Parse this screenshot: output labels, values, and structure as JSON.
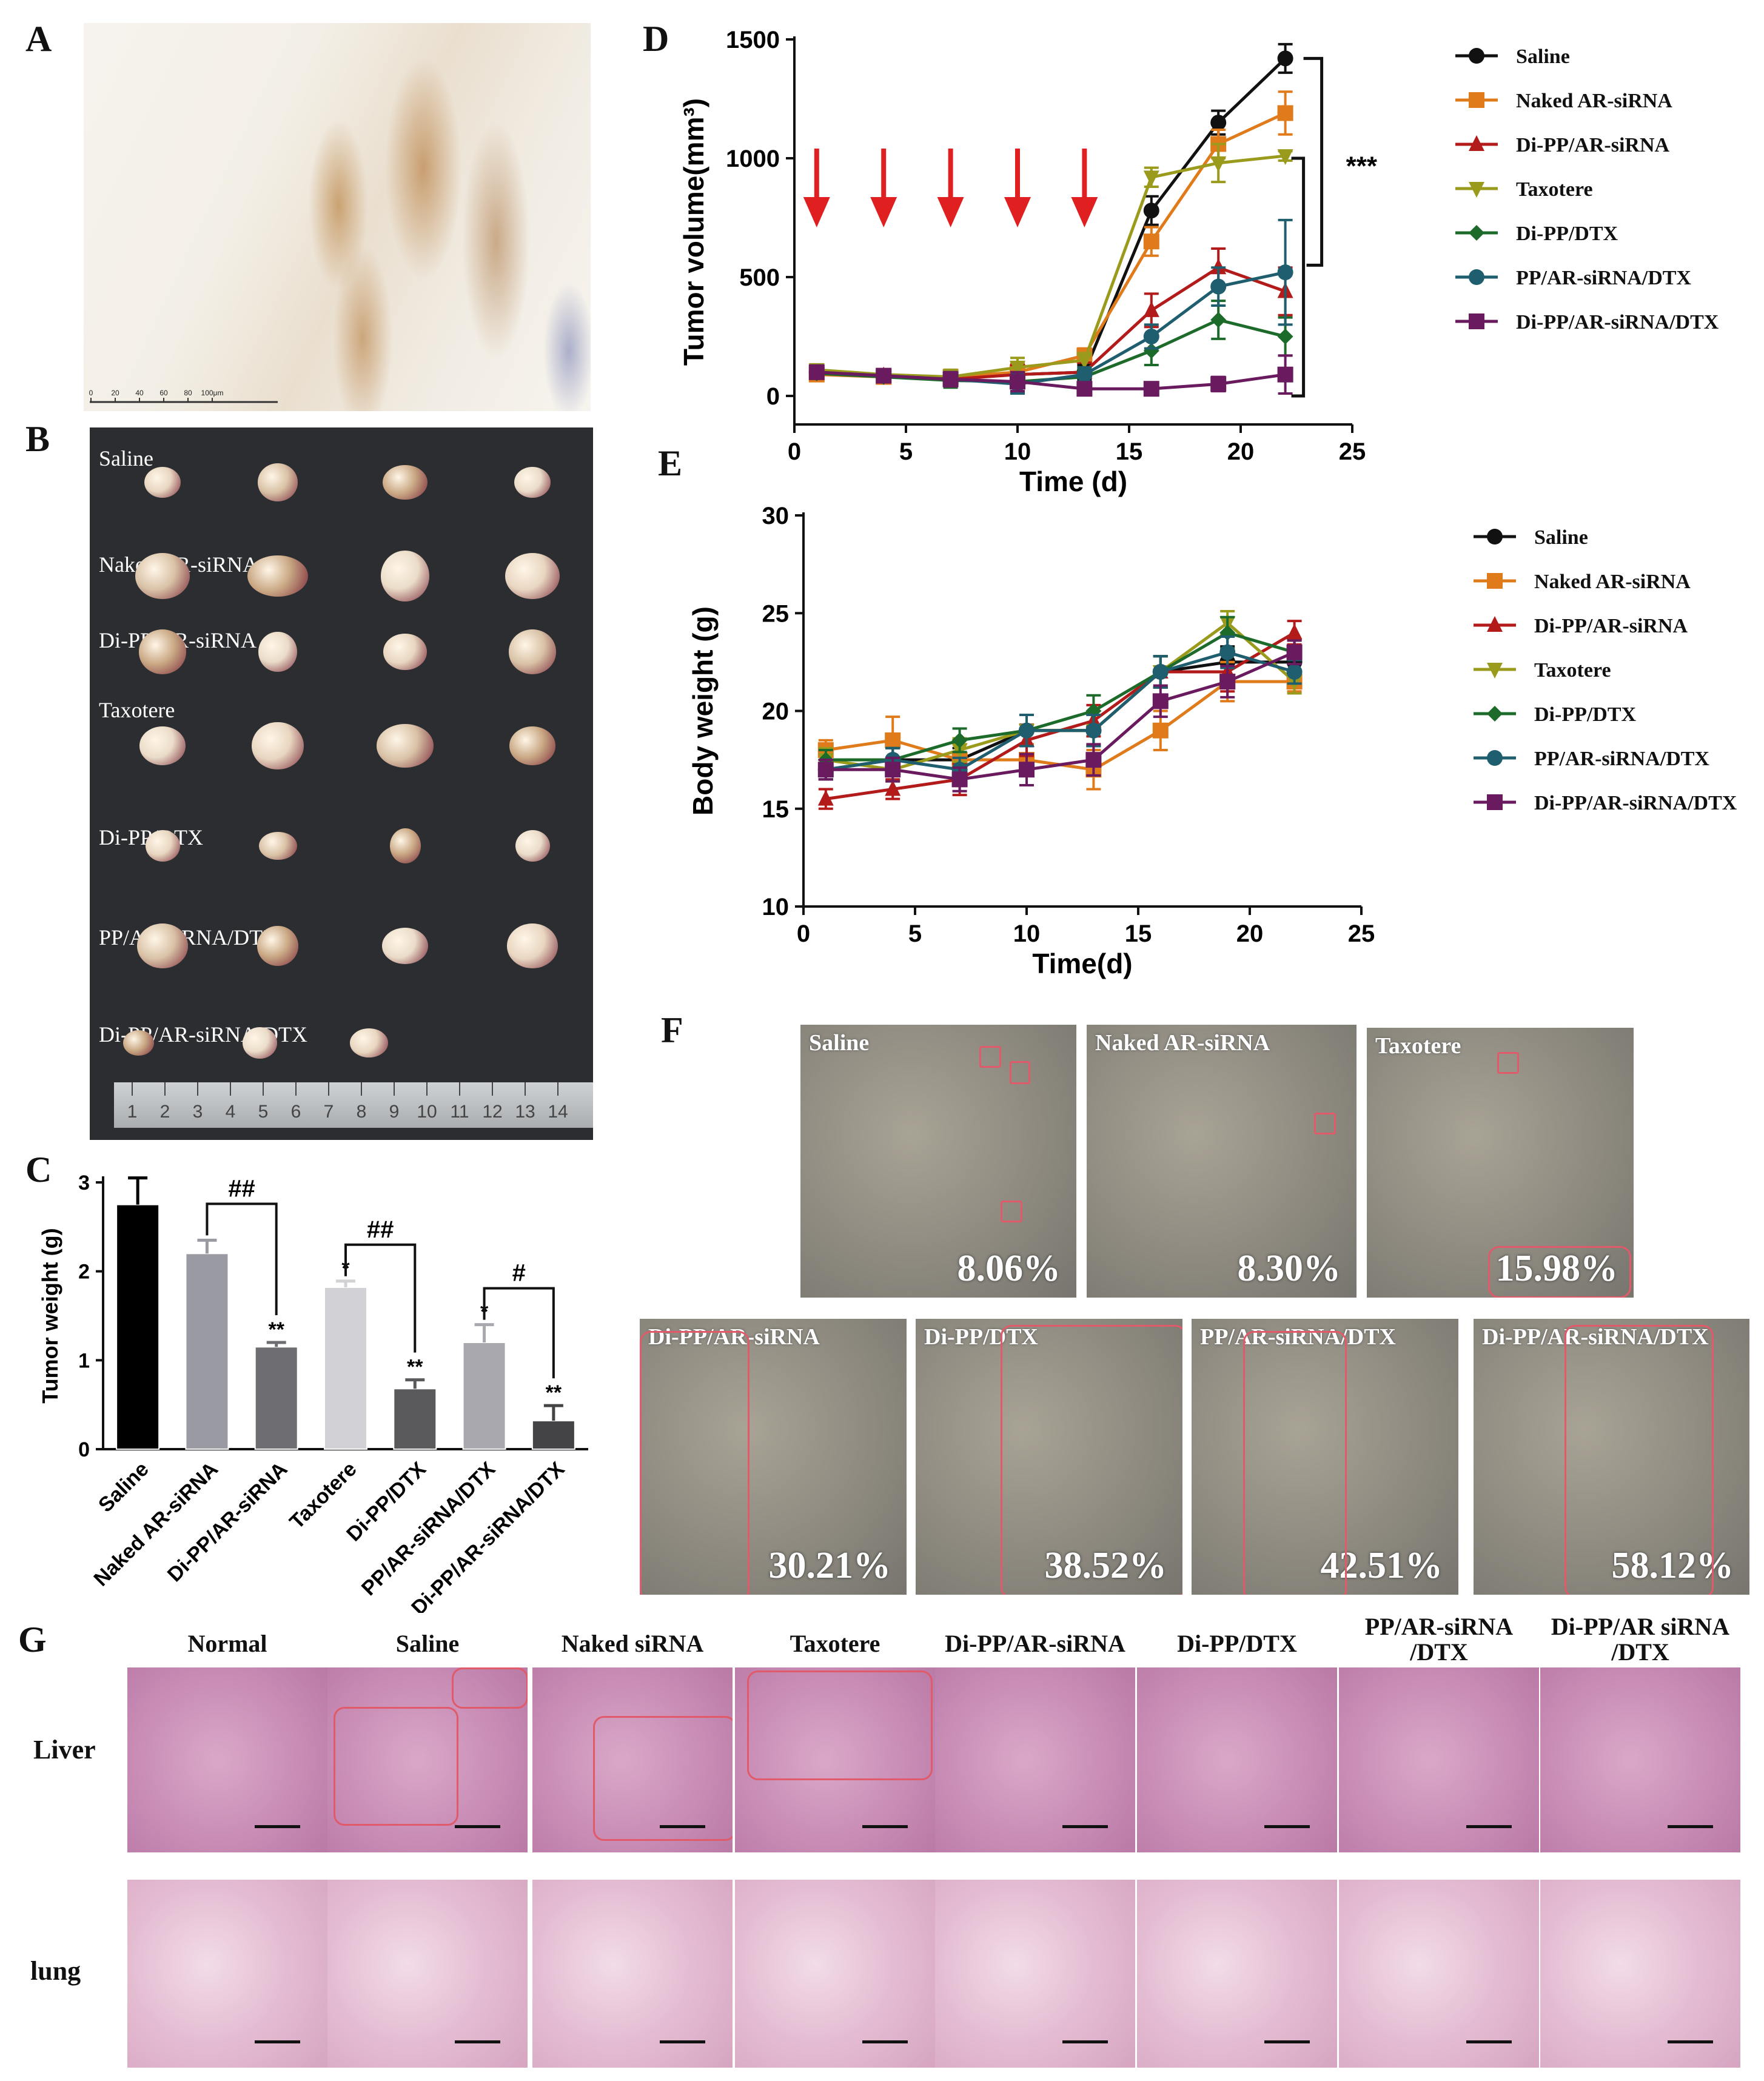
{
  "panels": {
    "A": "A",
    "B": "B",
    "C": "C",
    "D": "D",
    "E": "E",
    "F": "F",
    "G": "G"
  },
  "panel_b": {
    "groups": [
      "Saline",
      "Naked AR-siRNA",
      "Di-PP/AR-siRNA",
      "Taxotere",
      "Di-PP/DTX",
      "PP/AR-siRNA/DTX",
      "Di-PP/AR-siRNA/DTX"
    ],
    "ruler_ticks": [
      "1",
      "2",
      "3",
      "4",
      "5",
      "6",
      "7",
      "8",
      "9",
      "10",
      "11",
      "12",
      "13",
      "14"
    ]
  },
  "panel_a": {
    "scale_ticks": [
      "0",
      "20",
      "40",
      "60",
      "80",
      "100μm"
    ]
  },
  "chart_data": [
    {
      "id": "C",
      "type": "bar",
      "ylabel": "Tumor weight (g)",
      "ylim": [
        0,
        3
      ],
      "yticks": [
        0,
        1,
        2,
        3
      ],
      "categories": [
        "Saline",
        "Naked AR-siRNA",
        "Di-PP/AR-siRNA",
        "Taxotere",
        "Di-PP/DTX",
        "PP/AR-siRNA/DTX",
        "Di-PP/AR-siRNA/DTX"
      ],
      "values": [
        2.75,
        2.2,
        1.15,
        1.82,
        0.68,
        1.2,
        0.32
      ],
      "errors": [
        0.3,
        0.15,
        0.05,
        0.07,
        0.1,
        0.2,
        0.17
      ],
      "colors": [
        "#000000",
        "#9a9aa3",
        "#6e6e72",
        "#d2d2d6",
        "#5a5a5c",
        "#a8a8ae",
        "#444446"
      ],
      "stars": [
        "",
        "",
        "**",
        "*",
        "**",
        "*",
        "**"
      ],
      "comparisons": [
        {
          "from": 1,
          "to": 2,
          "label": "##"
        },
        {
          "from": 3,
          "to": 4,
          "label": "##"
        },
        {
          "from": 5,
          "to": 6,
          "label": "#"
        }
      ]
    },
    {
      "id": "D",
      "type": "line",
      "xlabel": "Time (d)",
      "ylabel": "Tumor volume(mm³)",
      "xlim": [
        0,
        25
      ],
      "ylim": [
        -120,
        1500
      ],
      "xticks": [
        0,
        5,
        10,
        15,
        20,
        25
      ],
      "yticks": [
        0,
        500,
        1000,
        1500
      ],
      "x": [
        1,
        4,
        7,
        10,
        13,
        16,
        19,
        22
      ],
      "arrows_at": [
        1,
        4,
        7,
        10,
        13
      ],
      "significance": "***",
      "series": [
        {
          "name": "Saline",
          "color": "#111111",
          "marker": "circle",
          "values": [
            100,
            85,
            75,
            90,
            100,
            780,
            1150,
            1420
          ],
          "errors": [
            20,
            20,
            30,
            40,
            30,
            60,
            50,
            60
          ]
        },
        {
          "name": "Naked AR-siRNA",
          "color": "#e07b1c",
          "marker": "square",
          "values": [
            90,
            80,
            80,
            100,
            170,
            650,
            1060,
            1190
          ],
          "errors": [
            20,
            20,
            30,
            40,
            30,
            60,
            60,
            90
          ]
        },
        {
          "name": "Di-PP/AR-siRNA",
          "color": "#b31b1b",
          "marker": "triangle",
          "values": [
            95,
            85,
            70,
            90,
            100,
            360,
            540,
            440
          ],
          "errors": [
            20,
            20,
            30,
            40,
            40,
            70,
            80,
            100
          ]
        },
        {
          "name": "Taxotere",
          "color": "#9a9a1c",
          "marker": "triangle-down",
          "values": [
            110,
            90,
            80,
            120,
            150,
            920,
            980,
            1010
          ],
          "errors": [
            20,
            20,
            30,
            40,
            30,
            40,
            80,
            20
          ]
        },
        {
          "name": "Di-PP/DTX",
          "color": "#1d6b2a",
          "marker": "diamond",
          "values": [
            95,
            80,
            65,
            60,
            80,
            190,
            320,
            250
          ],
          "errors": [
            20,
            20,
            30,
            40,
            30,
            60,
            80,
            80
          ]
        },
        {
          "name": "PP/AR-siRNA/DTX",
          "color": "#1e5e6e",
          "marker": "circle",
          "values": [
            100,
            85,
            70,
            50,
            90,
            250,
            460,
            520
          ],
          "errors": [
            20,
            20,
            30,
            40,
            30,
            50,
            80,
            220
          ]
        },
        {
          "name": "Di-PP/AR-siRNA/DTX",
          "color": "#6a1a5e",
          "marker": "square",
          "values": [
            100,
            85,
            70,
            60,
            30,
            30,
            50,
            90
          ],
          "errors": [
            20,
            20,
            30,
            40,
            20,
            15,
            30,
            80
          ]
        }
      ]
    },
    {
      "id": "E",
      "type": "line",
      "xlabel": "Time(d)",
      "ylabel": "Body weight (g)",
      "xlim": [
        0,
        25
      ],
      "ylim": [
        10,
        30
      ],
      "xticks": [
        0,
        5,
        10,
        15,
        20,
        25
      ],
      "yticks": [
        10,
        15,
        20,
        25,
        30
      ],
      "x": [
        1,
        4,
        7,
        10,
        13,
        16,
        19,
        22
      ],
      "series": [
        {
          "name": "Saline",
          "color": "#111111",
          "marker": "circle",
          "values": [
            17.0,
            17.5,
            17.5,
            19.0,
            19.0,
            22.0,
            22.5,
            22.5
          ],
          "errors": [
            0.5,
            0.6,
            0.6,
            0.8,
            0.8,
            0.8,
            0.8,
            0.6
          ]
        },
        {
          "name": "Naked AR-siRNA",
          "color": "#e07b1c",
          "marker": "square",
          "values": [
            18.0,
            18.5,
            17.5,
            17.5,
            17.0,
            19.0,
            21.5,
            21.5
          ],
          "errors": [
            0.5,
            1.2,
            0.8,
            0.8,
            1.0,
            1.0,
            1.0,
            0.5
          ]
        },
        {
          "name": "Di-PP/AR-siRNA",
          "color": "#b31b1b",
          "marker": "triangle",
          "values": [
            15.5,
            16.0,
            16.5,
            18.5,
            19.5,
            22.0,
            22.0,
            24.0
          ],
          "errors": [
            0.5,
            0.5,
            0.8,
            0.8,
            0.8,
            0.8,
            1.0,
            0.6
          ]
        },
        {
          "name": "Taxotere",
          "color": "#9a9a1c",
          "marker": "triangle-down",
          "values": [
            17.5,
            17.0,
            18.0,
            19.0,
            19.0,
            22.0,
            24.5,
            21.5
          ],
          "errors": [
            0.6,
            0.6,
            0.6,
            0.8,
            0.8,
            0.8,
            0.6,
            0.6
          ]
        },
        {
          "name": "Di-PP/DTX",
          "color": "#1d6b2a",
          "marker": "diamond",
          "values": [
            17.5,
            17.5,
            18.5,
            19.0,
            20.0,
            22.0,
            24.0,
            23.0
          ],
          "errors": [
            0.5,
            0.6,
            0.6,
            0.8,
            0.8,
            0.8,
            0.8,
            0.6
          ]
        },
        {
          "name": "PP/AR-siRNA/DTX",
          "color": "#1e5e6e",
          "marker": "circle",
          "values": [
            17.0,
            17.5,
            17.0,
            19.0,
            19.0,
            22.0,
            23.0,
            22.0
          ],
          "errors": [
            0.5,
            0.6,
            0.6,
            0.8,
            0.8,
            0.8,
            0.8,
            0.6
          ]
        },
        {
          "name": "Di-PP/AR-siRNA/DTX",
          "color": "#6a1a5e",
          "marker": "square",
          "values": [
            17.0,
            17.0,
            16.5,
            17.0,
            17.5,
            20.5,
            21.5,
            23.0
          ],
          "errors": [
            0.5,
            0.6,
            0.6,
            0.8,
            0.8,
            0.8,
            0.8,
            0.6
          ]
        }
      ]
    }
  ],
  "panel_f": {
    "images": [
      {
        "label": "Saline",
        "value": "8.06%"
      },
      {
        "label": "Naked AR-siRNA",
        "value": "8.30%"
      },
      {
        "label": "Taxotere",
        "value": "15.98%"
      },
      {
        "label": "Di-PP/AR-siRNA",
        "value": "30.21%"
      },
      {
        "label": "Di-PP/DTX",
        "value": "38.52%"
      },
      {
        "label": "PP/AR-siRNA/DTX",
        "value": "42.51%"
      },
      {
        "label": "Di-PP/AR-siRNA/DTX",
        "value": "58.12%"
      }
    ]
  },
  "panel_g": {
    "columns": [
      "Normal",
      "Saline",
      "Naked siRNA",
      "Taxotere",
      "Di-PP/AR-siRNA",
      "Di-PP/DTX",
      "PP/AR-siRNA\n/DTX",
      "Di-PP/AR siRNA\n/DTX"
    ],
    "rows": [
      "Liver",
      "lung"
    ]
  }
}
